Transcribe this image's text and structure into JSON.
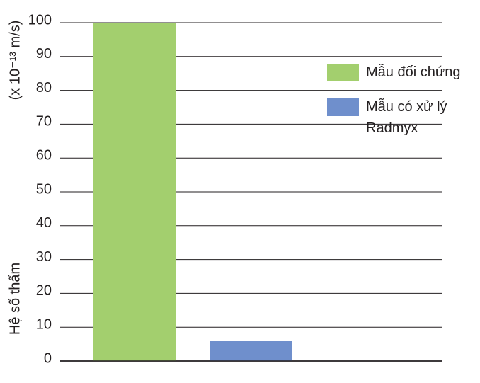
{
  "chart_data": {
    "type": "bar",
    "y_label": "Hệ số thấm",
    "y_unit": "(x 10⁻¹³ m/s)",
    "categories": [
      null,
      null
    ],
    "series": [
      {
        "name": "Mẫu đối chứng",
        "color": "#a3cf6e",
        "values": [
          100,
          null
        ]
      },
      {
        "name": "Mẫu có xử lý Radmyx",
        "color": "#6f8fcc",
        "values": [
          null,
          6
        ]
      }
    ],
    "ylim": [
      0,
      100
    ],
    "yticks": [
      0,
      10,
      20,
      30,
      40,
      50,
      60,
      70,
      80,
      90,
      100
    ],
    "grid": true
  }
}
